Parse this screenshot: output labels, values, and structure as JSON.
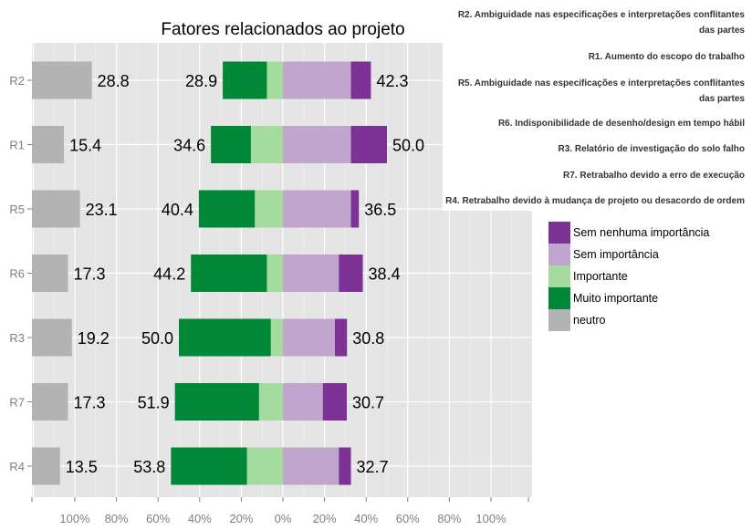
{
  "chart_data": {
    "type": "bar",
    "subtype": "diverging-stacked-likert",
    "title": "Fatores relacionados ao projeto",
    "categories": [
      "R2",
      "R1",
      "R5",
      "R6",
      "R3",
      "R7",
      "R4"
    ],
    "series": [
      {
        "name": "neutro",
        "color": "#b3b3b3",
        "values": [
          28.8,
          15.4,
          23.1,
          17.3,
          19.2,
          17.3,
          13.5
        ]
      },
      {
        "name": "Muito importante",
        "color": "#008837",
        "values": [
          21.2,
          19.2,
          26.9,
          36.5,
          44.2,
          40.4,
          36.5
        ]
      },
      {
        "name": "Importante",
        "color": "#a6dba0",
        "values": [
          7.7,
          15.4,
          13.5,
          7.7,
          5.8,
          11.5,
          17.3
        ]
      },
      {
        "name": "Sem importância",
        "color": "#c2a5cf",
        "values": [
          32.7,
          32.7,
          32.7,
          26.9,
          25.0,
          19.2,
          26.9
        ]
      },
      {
        "name": "Sem nenhuma importância",
        "color": "#7b3294",
        "values": [
          9.6,
          17.3,
          3.8,
          11.5,
          5.8,
          11.5,
          5.8
        ]
      }
    ],
    "neutral_labels": [
      "28.8",
      "15.4",
      "23.1",
      "17.3",
      "19.2",
      "17.3",
      "13.5"
    ],
    "left_labels": [
      "28.9",
      "34.6",
      "40.4",
      "44.2",
      "50.0",
      "51.9",
      "53.8"
    ],
    "right_labels": [
      "42.3",
      "50.0",
      "36.5",
      "38.4",
      "30.8",
      "30.7",
      "32.7"
    ],
    "x_ticks": [
      "100%",
      "80%",
      "60%",
      "40%",
      "20%",
      "0%",
      "20%",
      "40%",
      "60%",
      "80%",
      "100%"
    ],
    "xlim": [
      -100,
      100
    ],
    "grid": true,
    "legend_position": "right",
    "item_labels": [
      "R2. Ambiguidade nas especificações e interpretações conflitantes das partes",
      "R1. Aumento do escopo do trabalho",
      "R5. Ambiguidade nas especificações e interpretações conflitantes das partes",
      "R6. Indisponibilidade de desenho/design em tempo hábil",
      "R3. Relatório de investigação do solo falho",
      "R7. Retrabalho devido a erro de execução",
      "R4. Retrabalho devido à mudança de projeto ou desacordo de ordem"
    ],
    "legend_items": [
      {
        "label": "Sem nenhuma importância",
        "color": "#7b3294"
      },
      {
        "label": "Sem importância",
        "color": "#c2a5cf"
      },
      {
        "label": "Importante",
        "color": "#a6dba0"
      },
      {
        "label": "Muito importante",
        "color": "#008837"
      },
      {
        "label": "neutro",
        "color": "#b3b3b3"
      }
    ]
  }
}
